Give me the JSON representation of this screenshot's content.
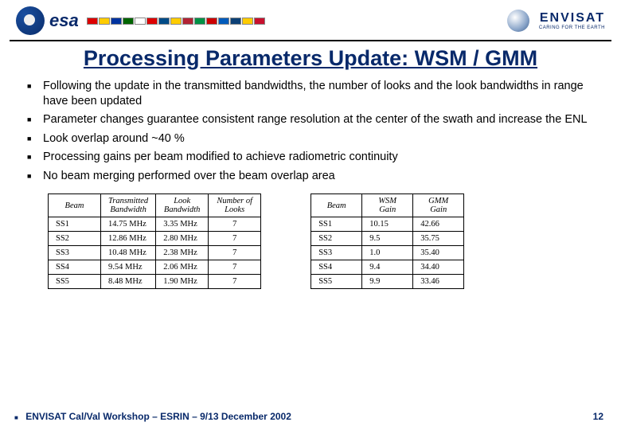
{
  "header": {
    "esa_label": "esa",
    "flag_colors": [
      "#d00",
      "#ffcc00",
      "#0033a0",
      "#006400",
      "#fff",
      "#d00",
      "#004b87",
      "#ffcc00",
      "#b22234",
      "#009246",
      "#cc0000",
      "#005bbb",
      "#0c4076",
      "#fecb00",
      "#c8102e"
    ],
    "envisat_label": "ENVISAT",
    "envisat_sub": "CARING FOR THE EARTH"
  },
  "title": "Processing Parameters Update: WSM / GMM",
  "bullets": [
    "Following the update in the transmitted bandwidths, the number of looks and the look bandwidths in range have been updated",
    "Parameter changes guarantee consistent range resolution at the center of the swath and increase the ENL",
    "Look overlap around ~40 %",
    "Processing gains per beam modified to achieve radiometric continuity",
    "No beam merging performed over the beam overlap area"
  ],
  "table_left": {
    "columns": [
      "Beam",
      "Transmitted Bandwidth",
      "Look Bandwidth",
      "Number of Looks"
    ],
    "rows": [
      [
        "SS1",
        "14.75 MHz",
        "3.35 MHz",
        "7"
      ],
      [
        "SS2",
        "12.86 MHz",
        "2.80 MHz",
        "7"
      ],
      [
        "SS3",
        "10.48 MHz",
        "2.38 MHz",
        "7"
      ],
      [
        "SS4",
        "9.54 MHz",
        "2.06 MHz",
        "7"
      ],
      [
        "SS5",
        "8.48 MHz",
        "1.90 MHz",
        "7"
      ]
    ]
  },
  "table_right": {
    "columns": [
      "Beam",
      "WSM Gain",
      "GMM Gain"
    ],
    "rows": [
      [
        "SS1",
        "10.15",
        "42.66"
      ],
      [
        "SS2",
        "9.5",
        "35.75"
      ],
      [
        "SS3",
        "1.0",
        "35.40"
      ],
      [
        "SS4",
        "9.4",
        "34.40"
      ],
      [
        "SS5",
        "9.9",
        "33.46"
      ]
    ]
  },
  "footer": {
    "left": "ENVISAT Cal/Val Workshop – ESRIN – 9/13 December 2002",
    "page": "12"
  }
}
